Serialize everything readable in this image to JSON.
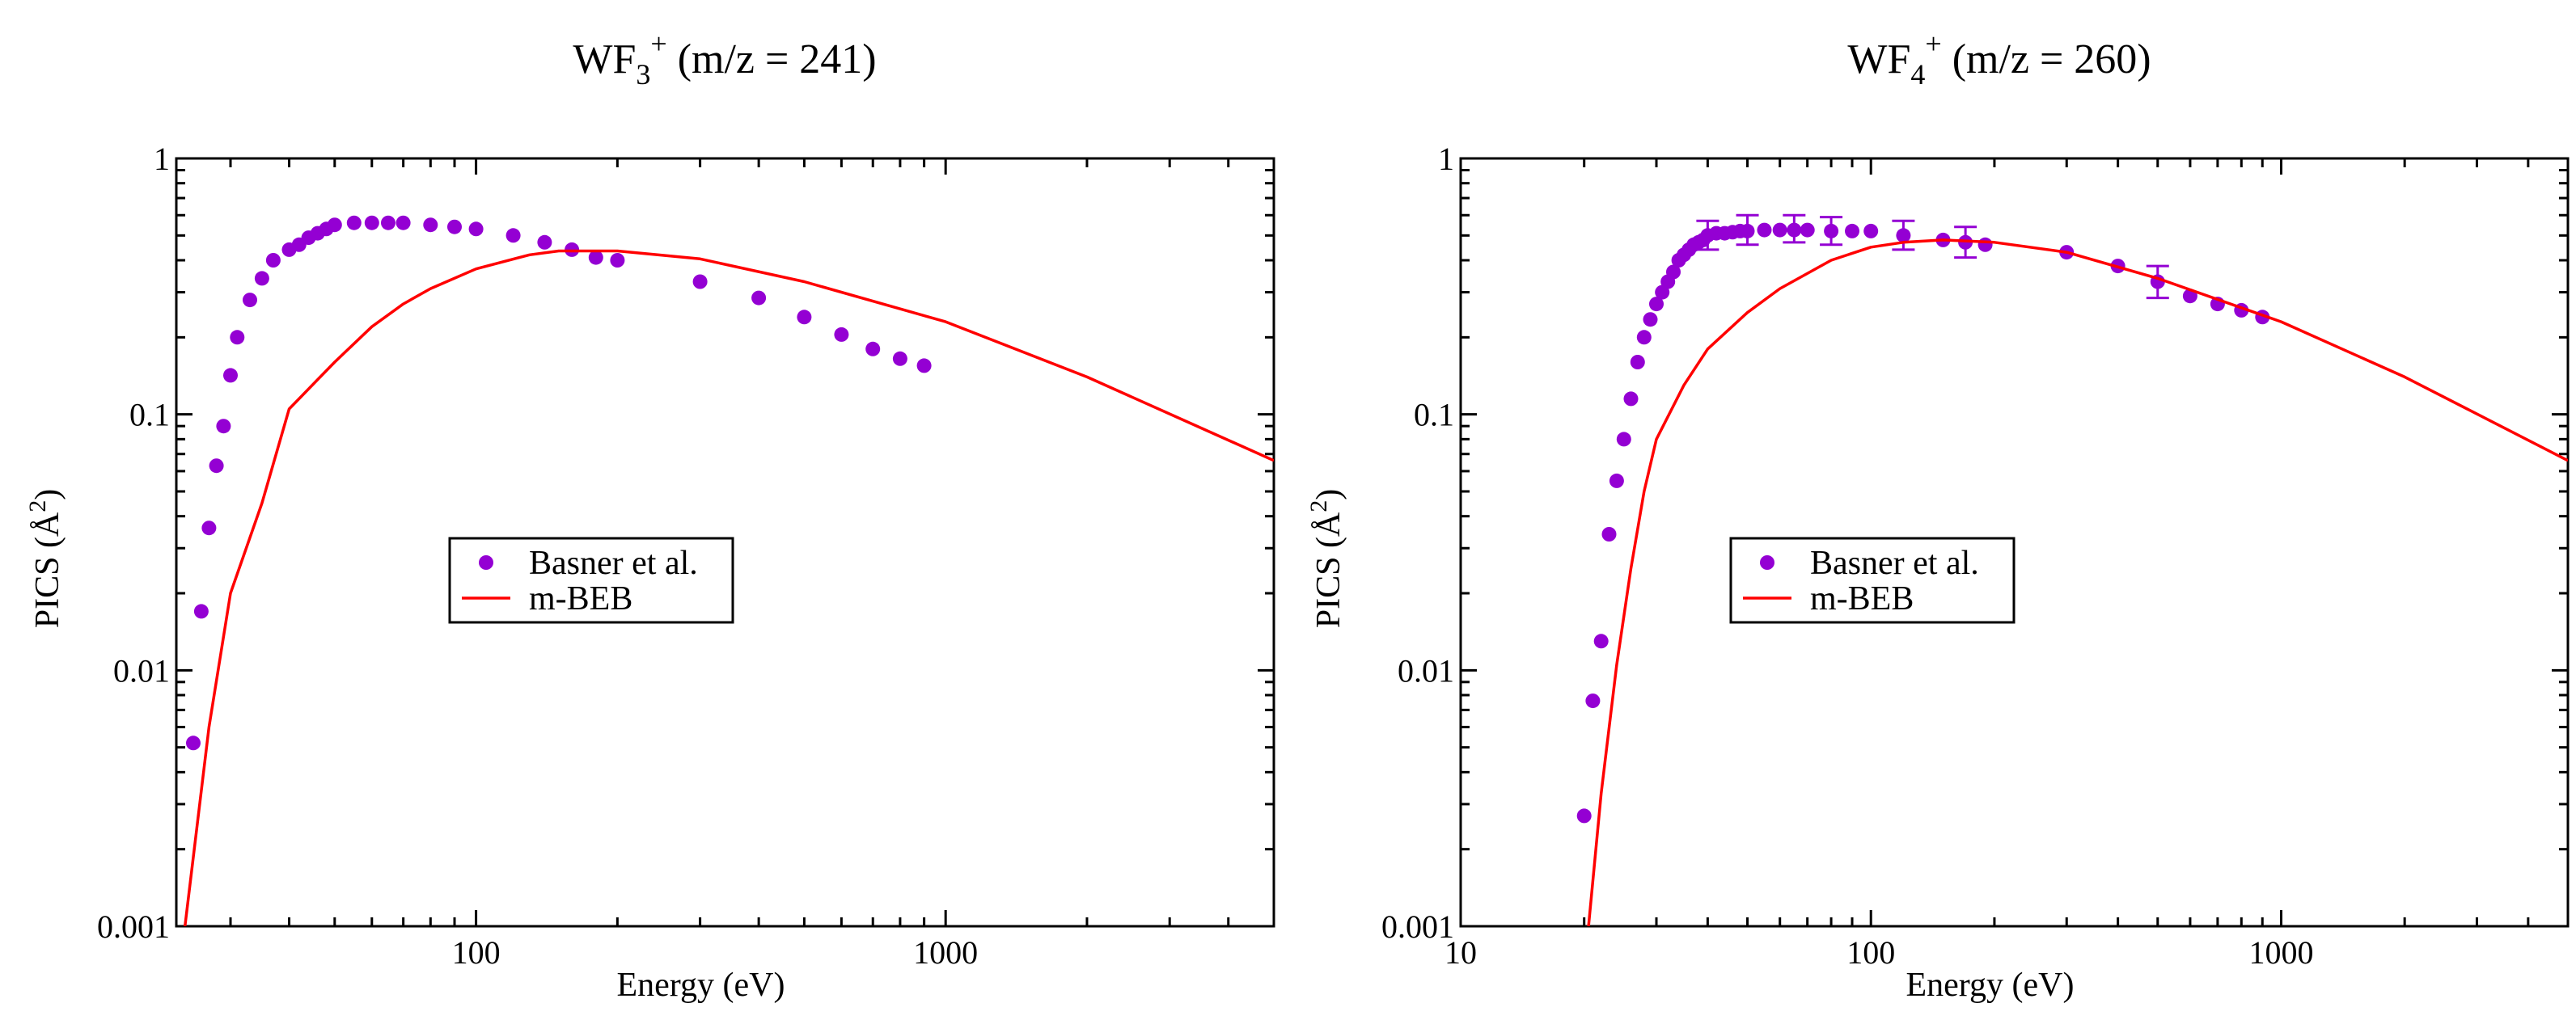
{
  "colors": {
    "data_points": "#9400D3",
    "model_line": "#FF0000",
    "axes": "#000000",
    "background": "#FFFFFF"
  },
  "chart_data": [
    {
      "type": "scatter",
      "title": {
        "base": "WF",
        "subscript": "3",
        "superscript": "+",
        "suffix": "(m/z = 241)"
      },
      "xlabel": "Energy (eV)",
      "ylabel": {
        "base": "PICS (",
        "unit": "Å",
        "power": "2",
        "close": ")"
      },
      "xscale": "log",
      "yscale": "log",
      "xlim": [
        23,
        5000
      ],
      "ylim": [
        0.001,
        1
      ],
      "xticks": [
        {
          "value": 100,
          "label": "100"
        },
        {
          "value": 1000,
          "label": "1000"
        }
      ],
      "yticks": [
        {
          "value": 0.001,
          "label": "0.001"
        },
        {
          "value": 0.01,
          "label": "0.01"
        },
        {
          "value": 0.1,
          "label": "0.1"
        },
        {
          "value": 1,
          "label": "1"
        }
      ],
      "legend": {
        "position": "center-left",
        "entries": [
          "Basner et al.",
          "m-BEB"
        ]
      },
      "series": [
        {
          "name": "Basner et al.",
          "kind": "points",
          "x": [
            25,
            26,
            27,
            28,
            29,
            30,
            31,
            33,
            35,
            37,
            40,
            42,
            44,
            46,
            48,
            50,
            55,
            60,
            65,
            70,
            80,
            90,
            100,
            120,
            140,
            160,
            180,
            200,
            300,
            400,
            500,
            600,
            700,
            800,
            900
          ],
          "y": [
            0.0052,
            0.017,
            0.036,
            0.063,
            0.09,
            0.142,
            0.2,
            0.28,
            0.34,
            0.4,
            0.44,
            0.46,
            0.49,
            0.51,
            0.53,
            0.55,
            0.56,
            0.56,
            0.56,
            0.56,
            0.55,
            0.54,
            0.53,
            0.5,
            0.47,
            0.44,
            0.41,
            0.4,
            0.33,
            0.285,
            0.24,
            0.205,
            0.18,
            0.165,
            0.155
          ]
        },
        {
          "name": "m-BEB",
          "kind": "line",
          "x": [
            24,
            27,
            30,
            35,
            40,
            50,
            60,
            70,
            80,
            100,
            130,
            150,
            200,
            300,
            500,
            1000,
            2000,
            5000
          ],
          "y": [
            0.001,
            0.006,
            0.02,
            0.045,
            0.105,
            0.16,
            0.22,
            0.27,
            0.31,
            0.37,
            0.42,
            0.435,
            0.435,
            0.405,
            0.33,
            0.23,
            0.14,
            0.066
          ]
        }
      ]
    },
    {
      "type": "scatter",
      "title": {
        "base": "WF",
        "subscript": "4",
        "superscript": "+",
        "suffix": "(m/z = 260)"
      },
      "xlabel": "Energy (eV)",
      "ylabel": {
        "base": "PICS (",
        "unit": "Å",
        "power": "2",
        "close": ")"
      },
      "xscale": "log",
      "yscale": "log",
      "xlim": [
        10,
        5000
      ],
      "ylim": [
        0.001,
        1
      ],
      "xticks": [
        {
          "value": 10,
          "label": "10"
        },
        {
          "value": 100,
          "label": "100"
        },
        {
          "value": 1000,
          "label": "1000"
        }
      ],
      "yticks": [
        {
          "value": 0.001,
          "label": "0.001"
        },
        {
          "value": 0.01,
          "label": "0.01"
        },
        {
          "value": 0.1,
          "label": "0.1"
        },
        {
          "value": 1,
          "label": "1"
        }
      ],
      "legend": {
        "position": "center-left",
        "entries": [
          "Basner et al.",
          "m-BEB"
        ]
      },
      "series": [
        {
          "name": "Basner et al.",
          "kind": "points",
          "x": [
            20,
            21,
            22,
            23,
            24,
            25,
            26,
            27,
            28,
            29,
            30,
            31,
            32,
            33,
            34,
            35,
            36,
            37,
            38,
            39,
            40,
            42,
            44,
            46,
            48,
            50,
            55,
            60,
            65,
            70,
            80,
            90,
            100,
            120,
            150,
            170,
            190,
            300,
            400,
            500,
            600,
            700,
            800,
            900
          ],
          "y": [
            0.0027,
            0.0076,
            0.013,
            0.034,
            0.055,
            0.08,
            0.115,
            0.16,
            0.2,
            0.235,
            0.27,
            0.3,
            0.33,
            0.36,
            0.4,
            0.42,
            0.44,
            0.46,
            0.47,
            0.48,
            0.5,
            0.51,
            0.51,
            0.515,
            0.52,
            0.52,
            0.525,
            0.525,
            0.525,
            0.525,
            0.52,
            0.52,
            0.52,
            0.5,
            0.48,
            0.47,
            0.46,
            0.43,
            0.38,
            0.33,
            0.29,
            0.27,
            0.255,
            0.24
          ],
          "error_bars": [
            {
              "x": 40,
              "y": 0.5,
              "low": 0.44,
              "high": 0.57
            },
            {
              "x": 50,
              "y": 0.52,
              "low": 0.46,
              "high": 0.6
            },
            {
              "x": 65,
              "y": 0.525,
              "low": 0.47,
              "high": 0.6
            },
            {
              "x": 80,
              "y": 0.52,
              "low": 0.46,
              "high": 0.59
            },
            {
              "x": 120,
              "y": 0.5,
              "low": 0.44,
              "high": 0.57
            },
            {
              "x": 170,
              "y": 0.47,
              "low": 0.41,
              "high": 0.54
            },
            {
              "x": 500,
              "y": 0.33,
              "low": 0.285,
              "high": 0.38
            }
          ]
        },
        {
          "name": "m-BEB",
          "kind": "line",
          "x": [
            20.5,
            22,
            24,
            26,
            28,
            30,
            35,
            40,
            50,
            60,
            80,
            100,
            120,
            150,
            200,
            300,
            500,
            1000,
            2000,
            5000
          ],
          "y": [
            0.001,
            0.0033,
            0.0105,
            0.025,
            0.05,
            0.08,
            0.13,
            0.18,
            0.25,
            0.31,
            0.4,
            0.45,
            0.47,
            0.48,
            0.47,
            0.43,
            0.34,
            0.23,
            0.14,
            0.066
          ]
        }
      ]
    }
  ]
}
